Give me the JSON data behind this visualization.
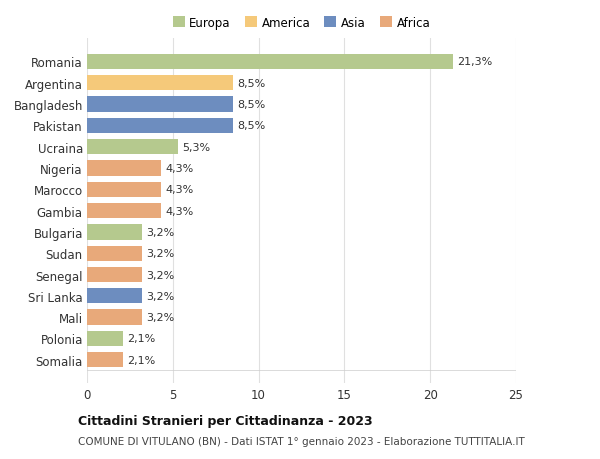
{
  "countries": [
    "Romania",
    "Argentina",
    "Bangladesh",
    "Pakistan",
    "Ucraina",
    "Nigeria",
    "Marocco",
    "Gambia",
    "Bulgaria",
    "Sudan",
    "Senegal",
    "Sri Lanka",
    "Mali",
    "Polonia",
    "Somalia"
  ],
  "values": [
    21.3,
    8.5,
    8.5,
    8.5,
    5.3,
    4.3,
    4.3,
    4.3,
    3.2,
    3.2,
    3.2,
    3.2,
    3.2,
    2.1,
    2.1
  ],
  "labels": [
    "21,3%",
    "8,5%",
    "8,5%",
    "8,5%",
    "5,3%",
    "4,3%",
    "4,3%",
    "4,3%",
    "3,2%",
    "3,2%",
    "3,2%",
    "3,2%",
    "3,2%",
    "2,1%",
    "2,1%"
  ],
  "colors": [
    "#b5c98e",
    "#f5c97a",
    "#6d8dbf",
    "#6d8dbf",
    "#b5c98e",
    "#e8a97a",
    "#e8a97a",
    "#e8a97a",
    "#b5c98e",
    "#e8a97a",
    "#e8a97a",
    "#6d8dbf",
    "#e8a97a",
    "#b5c98e",
    "#e8a97a"
  ],
  "legend": [
    {
      "label": "Europa",
      "color": "#b5c98e"
    },
    {
      "label": "America",
      "color": "#f5c97a"
    },
    {
      "label": "Asia",
      "color": "#6d8dbf"
    },
    {
      "label": "Africa",
      "color": "#e8a97a"
    }
  ],
  "xlim": [
    0,
    25
  ],
  "xticks": [
    0,
    5,
    10,
    15,
    20,
    25
  ],
  "title": "Cittadini Stranieri per Cittadinanza - 2023",
  "subtitle": "COMUNE DI VITULANO (BN) - Dati ISTAT 1° gennaio 2023 - Elaborazione TUTTITALIA.IT",
  "background_color": "#ffffff",
  "grid_color": "#e0e0e0",
  "bar_height": 0.72,
  "label_fontsize": 8.0,
  "ytick_fontsize": 8.5,
  "xtick_fontsize": 8.5,
  "title_fontsize": 9.0,
  "subtitle_fontsize": 7.5,
  "legend_fontsize": 8.5
}
